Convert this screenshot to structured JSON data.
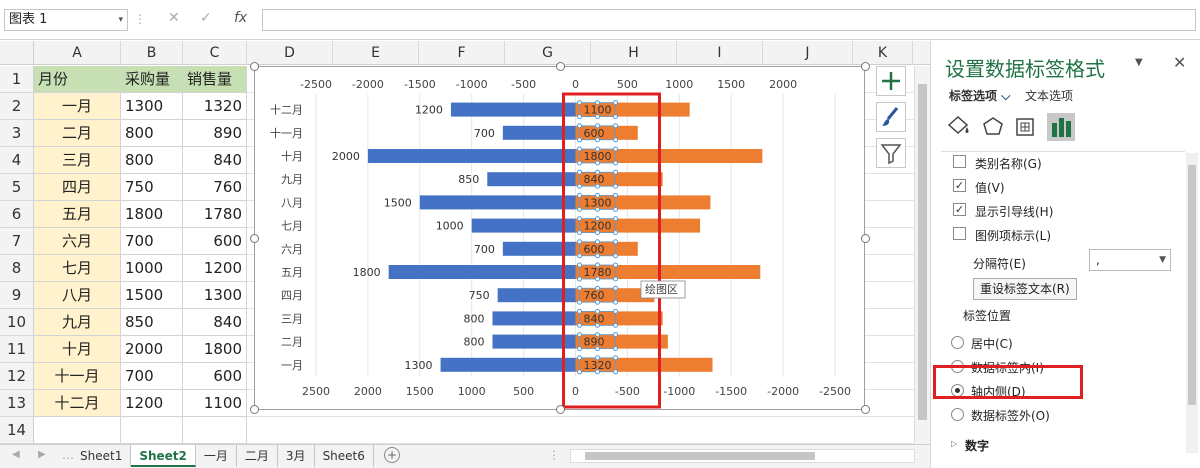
{
  "formula_bar": {
    "name_box": "图表 1",
    "cancel_icon": "✕",
    "enter_icon": "✓",
    "fx_label": "fx",
    "formula": ""
  },
  "columns": [
    "A",
    "B",
    "C",
    "D",
    "E",
    "F",
    "G",
    "H",
    "I",
    "J",
    "K"
  ],
  "rows": [
    {
      "n": "1",
      "a": "月份",
      "b": "采购量",
      "c": "销售量"
    },
    {
      "n": "2",
      "a": "一月",
      "b": "1300",
      "c": "1320"
    },
    {
      "n": "3",
      "a": "二月",
      "b": "800",
      "c": "890"
    },
    {
      "n": "4",
      "a": "三月",
      "b": "800",
      "c": "840"
    },
    {
      "n": "5",
      "a": "四月",
      "b": "750",
      "c": "760"
    },
    {
      "n": "6",
      "a": "五月",
      "b": "1800",
      "c": "1780"
    },
    {
      "n": "7",
      "a": "六月",
      "b": "700",
      "c": "600"
    },
    {
      "n": "8",
      "a": "七月",
      "b": "1000",
      "c": "1200"
    },
    {
      "n": "9",
      "a": "八月",
      "b": "1500",
      "c": "1300"
    },
    {
      "n": "10",
      "a": "九月",
      "b": "850",
      "c": "840"
    },
    {
      "n": "11",
      "a": "十月",
      "b": "2000",
      "c": "1800"
    },
    {
      "n": "12",
      "a": "十一月",
      "b": "700",
      "c": "600"
    },
    {
      "n": "13",
      "a": "十二月",
      "b": "1200",
      "c": "1100"
    },
    {
      "n": "14",
      "a": "",
      "b": "",
      "c": ""
    }
  ],
  "chart_data": {
    "type": "bar",
    "orientation": "horizontal",
    "categories": [
      "一月",
      "二月",
      "三月",
      "四月",
      "五月",
      "六月",
      "七月",
      "八月",
      "九月",
      "十月",
      "十一月",
      "十二月"
    ],
    "series": [
      {
        "values": [
          -1300,
          -800,
          -800,
          -750,
          -1800,
          -700,
          -1000,
          -1500,
          -850,
          -2000,
          -700,
          -1200
        ],
        "color": "#4472c4"
      },
      {
        "values": [
          1320,
          890,
          840,
          760,
          1780,
          600,
          1200,
          1300,
          840,
          1800,
          600,
          1100
        ],
        "color": "#ed7d31"
      }
    ],
    "top_ticks": [
      "-2500",
      "-2000",
      "-1500",
      "-1000",
      "-500",
      "0",
      "500",
      "1000",
      "1500",
      "2000"
    ],
    "bottom_ticks": [
      "2500",
      "2000",
      "1500",
      "1000",
      "500",
      "0",
      "-500",
      "-1000",
      "-1500",
      "-2000",
      "-2500"
    ],
    "xlim": [
      -2500,
      2500
    ],
    "tooltip": "绘图区",
    "highlight_color": "#e02020"
  },
  "panel": {
    "title": "设置数据标签格式",
    "tab_label_options": "标签选项",
    "tab_text_options": "文本选项",
    "icons": [
      "fill-line-icon",
      "effects-icon",
      "size-properties-icon",
      "label-options-icon"
    ],
    "checkboxes": [
      {
        "label": "类别名称(G)",
        "checked": false
      },
      {
        "label": "值(V)",
        "checked": true
      },
      {
        "label": "显示引导线(H)",
        "checked": true
      },
      {
        "label": "图例项标示(L)",
        "checked": false
      }
    ],
    "separator_label": "分隔符(E)",
    "separator_value": ",",
    "reset_button": "重设标签文本(R)",
    "position_title": "标签位置",
    "positions": [
      {
        "label": "居中(C)",
        "selected": false
      },
      {
        "label": "数据标签内(I)",
        "selected": false
      },
      {
        "label": "轴内侧(D)",
        "selected": true
      },
      {
        "label": "数据标签外(O)",
        "selected": false
      }
    ],
    "number_section": "数字"
  },
  "sheet_tabs": [
    "Sheet1",
    "Sheet2",
    "一月",
    "二月",
    "3月",
    "Sheet6"
  ],
  "active_sheet": "Sheet2"
}
